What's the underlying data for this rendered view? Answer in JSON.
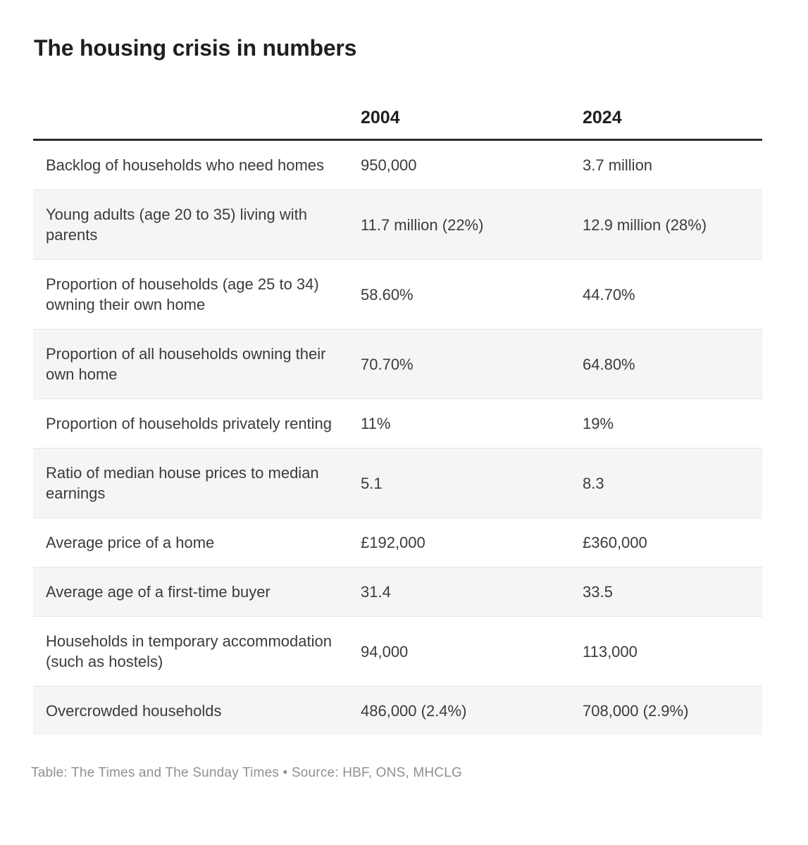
{
  "chart_data": {
    "type": "table",
    "title": "The housing crisis in numbers",
    "column_headers": [
      "2004",
      "2024"
    ],
    "rows": [
      {
        "label": "Backlog of households who need homes",
        "values": [
          "950,000",
          "3.7 million"
        ]
      },
      {
        "label": "Young adults (age 20 to 35) living with parents",
        "values": [
          "11.7 million (22%)",
          "12.9 million (28%)"
        ]
      },
      {
        "label": "Proportion of households (age 25 to 34) owning their own home",
        "values": [
          "58.60%",
          "44.70%"
        ]
      },
      {
        "label": "Proportion of all households owning their own home",
        "values": [
          "70.70%",
          "64.80%"
        ]
      },
      {
        "label": "Proportion of households privately renting",
        "values": [
          "11%",
          "19%"
        ]
      },
      {
        "label": "Ratio of median house prices to median earnings",
        "values": [
          "5.1",
          "8.3"
        ]
      },
      {
        "label": "Average price of a home",
        "values": [
          "£192,000",
          "£360,000"
        ]
      },
      {
        "label": "Average age of a first-time buyer",
        "values": [
          "31.4",
          "33.5"
        ]
      },
      {
        "label": "Households in temporary accommodation (such as hostels)",
        "values": [
          "94,000",
          "113,000"
        ]
      },
      {
        "label": "Overcrowded households",
        "values": [
          "486,000 (2.4%)",
          "708,000 (2.9%)"
        ]
      }
    ],
    "footer_credit": "Table: The Times and The Sunday Times • Source: HBF, ONS, MHCLG",
    "layout_hints": {
      "grid": "off",
      "legend": "none",
      "striped_rows": true
    }
  },
  "colors": {
    "title_text": "#1f1f1f",
    "body_text": "#3b3b3b",
    "header_rule": "#2c2c2c",
    "row_stripe": "#f5f5f5",
    "row_separator": "#e6e6e6",
    "footer_text": "#909090",
    "background": "#ffffff"
  }
}
